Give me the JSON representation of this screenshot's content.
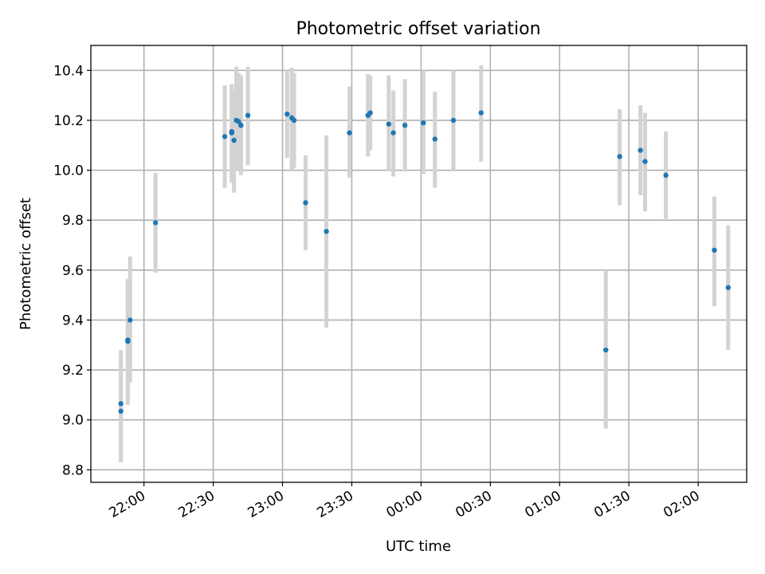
{
  "chart_data": {
    "type": "scatter",
    "title": "Photometric offset variation",
    "xlabel": "UTC time",
    "ylabel": "Photometric offset",
    "x_axis_type": "time",
    "xlim": [
      "21:37",
      "02:21"
    ],
    "ylim": [
      8.75,
      10.5
    ],
    "x_ticks": [
      "22:00",
      "22:30",
      "23:00",
      "23:30",
      "00:00",
      "00:30",
      "01:00",
      "01:30",
      "02:00"
    ],
    "y_ticks": [
      "8.8",
      "9.0",
      "9.2",
      "9.4",
      "9.6",
      "9.8",
      "10.0",
      "10.2",
      "10.4"
    ],
    "grid": true,
    "colors": {
      "marker": "#1f77b4",
      "errorbar": "#d3d3d3"
    },
    "series": [
      {
        "points": [
          {
            "x": "21:50",
            "y": 9.065,
            "low": 8.85,
            "high": 9.28
          },
          {
            "x": "21:50",
            "y": 9.035,
            "low": 8.83,
            "high": 9.24
          },
          {
            "x": "21:53",
            "y": 9.315,
            "low": 9.06,
            "high": 9.565
          },
          {
            "x": "21:53",
            "y": 9.32,
            "low": 9.08,
            "high": 9.56
          },
          {
            "x": "21:54",
            "y": 9.4,
            "low": 9.15,
            "high": 9.655
          },
          {
            "x": "22:05",
            "y": 9.79,
            "low": 9.59,
            "high": 9.99
          },
          {
            "x": "22:35",
            "y": 10.135,
            "low": 9.93,
            "high": 10.34
          },
          {
            "x": "22:38",
            "y": 10.15,
            "low": 9.95,
            "high": 10.345
          },
          {
            "x": "22:38",
            "y": 10.155,
            "low": 9.97,
            "high": 10.34
          },
          {
            "x": "22:39",
            "y": 10.12,
            "low": 9.91,
            "high": 10.32
          },
          {
            "x": "22:40",
            "y": 10.2,
            "low": 10.0,
            "high": 10.415
          },
          {
            "x": "22:41",
            "y": 10.195,
            "low": 10.0,
            "high": 10.39
          },
          {
            "x": "22:42",
            "y": 10.18,
            "low": 9.98,
            "high": 10.38
          },
          {
            "x": "22:42",
            "y": 10.18,
            "low": 9.99,
            "high": 10.37
          },
          {
            "x": "22:45",
            "y": 10.22,
            "low": 10.02,
            "high": 10.415
          },
          {
            "x": "23:02",
            "y": 10.225,
            "low": 10.05,
            "high": 10.4
          },
          {
            "x": "23:04",
            "y": 10.21,
            "low": 10.0,
            "high": 10.41
          },
          {
            "x": "23:05",
            "y": 10.2,
            "low": 10.01,
            "high": 10.39
          },
          {
            "x": "23:10",
            "y": 9.87,
            "low": 9.68,
            "high": 10.06
          },
          {
            "x": "23:19",
            "y": 9.755,
            "low": 9.37,
            "high": 10.14
          },
          {
            "x": "23:29",
            "y": 10.15,
            "low": 9.97,
            "high": 10.335
          },
          {
            "x": "23:37",
            "y": 10.22,
            "low": 10.055,
            "high": 10.385
          },
          {
            "x": "23:38",
            "y": 10.23,
            "low": 10.08,
            "high": 10.38
          },
          {
            "x": "23:46",
            "y": 10.185,
            "low": 10.0,
            "high": 10.38
          },
          {
            "x": "23:48",
            "y": 10.15,
            "low": 9.975,
            "high": 10.32
          },
          {
            "x": "23:53",
            "y": 10.18,
            "low": 9.995,
            "high": 10.365
          },
          {
            "x": "00:01",
            "y": 10.19,
            "low": 9.985,
            "high": 10.4
          },
          {
            "x": "00:06",
            "y": 10.125,
            "low": 9.93,
            "high": 10.315
          },
          {
            "x": "00:14",
            "y": 10.2,
            "low": 10.0,
            "high": 10.4
          },
          {
            "x": "00:26",
            "y": 10.23,
            "low": 10.035,
            "high": 10.42
          },
          {
            "x": "01:20",
            "y": 9.28,
            "low": 8.965,
            "high": 9.6
          },
          {
            "x": "01:26",
            "y": 10.055,
            "low": 9.86,
            "high": 10.245
          },
          {
            "x": "01:35",
            "y": 10.08,
            "low": 9.9,
            "high": 10.26
          },
          {
            "x": "01:37",
            "y": 10.035,
            "low": 9.835,
            "high": 10.23
          },
          {
            "x": "01:46",
            "y": 9.98,
            "low": 9.805,
            "high": 10.155
          },
          {
            "x": "02:07",
            "y": 9.68,
            "low": 9.455,
            "high": 9.895
          },
          {
            "x": "02:13",
            "y": 9.53,
            "low": 9.28,
            "high": 9.78
          }
        ]
      }
    ]
  }
}
